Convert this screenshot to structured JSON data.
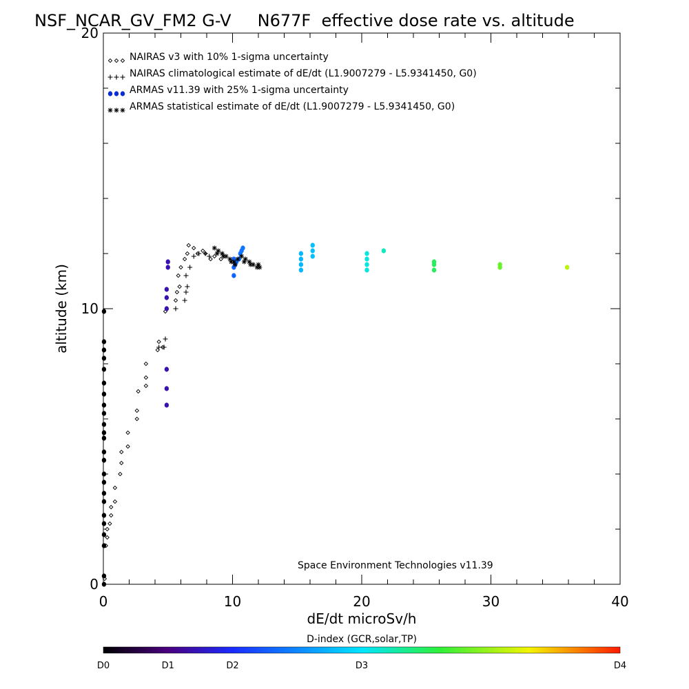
{
  "chart_data": {
    "type": "scatter",
    "title": "NSF_NCAR_GV_FM2 G-V     N677F  effective dose rate vs. altitude",
    "xlabel": "dE/dt microSv/h",
    "ylabel": "altitude (km)",
    "xlim": [
      0,
      40
    ],
    "ylim": [
      0,
      20
    ],
    "x_major_ticks": [
      0,
      10,
      20,
      30,
      40
    ],
    "y_major_ticks": [
      0,
      10,
      20
    ],
    "legend_position": "top-left",
    "credit": "Space Environment Technologies v11.39",
    "series": [
      {
        "name": "NAIRAS v3 with 10% 1-sigma uncertainty",
        "marker": "diamond",
        "color": "#000000",
        "points": [
          [
            0.1,
            0.2
          ],
          [
            0.2,
            1.4
          ],
          [
            0.3,
            1.7
          ],
          [
            0.3,
            2.0
          ],
          [
            0.5,
            2.2
          ],
          [
            0.6,
            2.5
          ],
          [
            0.6,
            2.8
          ],
          [
            0.9,
            3.0
          ],
          [
            0.9,
            3.5
          ],
          [
            1.3,
            4.0
          ],
          [
            1.4,
            4.4
          ],
          [
            1.4,
            4.8
          ],
          [
            1.9,
            5.0
          ],
          [
            1.9,
            5.5
          ],
          [
            2.6,
            6.0
          ],
          [
            2.6,
            6.3
          ],
          [
            2.7,
            7.0
          ],
          [
            3.3,
            7.2
          ],
          [
            3.3,
            7.5
          ],
          [
            3.3,
            8.0
          ],
          [
            4.2,
            8.5
          ],
          [
            4.3,
            8.8
          ],
          [
            4.6,
            8.6
          ],
          [
            4.8,
            9.9
          ],
          [
            5.6,
            10.3
          ],
          [
            5.7,
            10.6
          ],
          [
            5.9,
            10.8
          ],
          [
            5.8,
            11.2
          ],
          [
            6.0,
            11.5
          ],
          [
            6.3,
            11.8
          ],
          [
            6.5,
            12.0
          ],
          [
            6.6,
            12.3
          ],
          [
            7.0,
            12.2
          ],
          [
            7.3,
            12.0
          ],
          [
            7.7,
            12.1
          ],
          [
            7.9,
            12.0
          ],
          [
            8.3,
            11.8
          ],
          [
            8.6,
            11.9
          ],
          [
            9.1,
            11.8
          ]
        ]
      },
      {
        "name": "NAIRAS climatological estimate of dE/dt (L1.9007279 - L5.9341450, G0)",
        "marker": "plus",
        "color": "#000000",
        "points": [
          [
            4.3,
            8.6
          ],
          [
            4.7,
            8.6
          ],
          [
            4.8,
            8.9
          ],
          [
            5.6,
            10.0
          ],
          [
            6.3,
            10.3
          ],
          [
            6.4,
            10.6
          ],
          [
            6.5,
            10.8
          ],
          [
            6.4,
            11.2
          ],
          [
            6.7,
            11.5
          ],
          [
            7.0,
            11.9
          ],
          [
            7.4,
            12.0
          ],
          [
            7.9,
            12.0
          ],
          [
            8.2,
            11.9
          ]
        ]
      },
      {
        "name": "ARMAS v11.39 with 25% 1-sigma uncertainty",
        "marker": "circle",
        "color": "#0a2bd6",
        "points": [
          [
            0.05,
            0.0
          ],
          [
            0.05,
            0.3
          ],
          [
            0.05,
            1.4
          ],
          [
            0.05,
            1.8
          ],
          [
            0.05,
            2.2
          ],
          [
            0.05,
            2.5
          ],
          [
            0.05,
            3.0
          ],
          [
            0.05,
            3.3
          ],
          [
            0.05,
            3.7
          ],
          [
            0.05,
            4.0
          ],
          [
            0.05,
            4.5
          ],
          [
            0.05,
            4.8
          ],
          [
            0.05,
            5.3
          ],
          [
            0.05,
            5.5
          ],
          [
            0.05,
            5.8
          ],
          [
            0.05,
            6.2
          ],
          [
            0.05,
            6.5
          ],
          [
            0.05,
            6.9
          ],
          [
            0.05,
            7.3
          ],
          [
            0.05,
            7.8
          ],
          [
            0.05,
            8.2
          ],
          [
            0.05,
            8.5
          ],
          [
            0.05,
            8.8
          ],
          [
            0.05,
            9.9
          ],
          [
            4.9,
            6.5
          ],
          [
            4.9,
            7.1
          ],
          [
            4.9,
            7.8
          ],
          [
            4.9,
            10.0
          ],
          [
            4.9,
            10.4
          ],
          [
            4.9,
            10.7
          ],
          [
            5.0,
            11.5
          ],
          [
            5.0,
            11.7
          ],
          [
            10.1,
            11.2
          ],
          [
            10.1,
            11.5
          ],
          [
            10.1,
            11.8
          ],
          [
            10.2,
            11.6
          ],
          [
            10.3,
            11.7
          ],
          [
            10.5,
            11.8
          ],
          [
            10.6,
            12.0
          ],
          [
            10.7,
            12.1
          ],
          [
            10.8,
            12.2
          ],
          [
            15.3,
            11.4
          ],
          [
            15.3,
            11.6
          ],
          [
            15.3,
            11.8
          ],
          [
            15.3,
            12.0
          ],
          [
            16.2,
            11.9
          ],
          [
            16.2,
            12.1
          ],
          [
            16.2,
            12.3
          ],
          [
            20.4,
            11.4
          ],
          [
            20.4,
            11.6
          ],
          [
            20.4,
            11.8
          ],
          [
            20.4,
            12.0
          ],
          [
            21.7,
            12.1
          ],
          [
            25.6,
            11.4
          ],
          [
            25.6,
            11.6
          ],
          [
            25.6,
            11.7
          ],
          [
            30.7,
            11.5
          ],
          [
            30.7,
            11.6
          ],
          [
            35.9,
            11.5
          ]
        ],
        "d_index": [
          0,
          0,
          0,
          0,
          0,
          0,
          0,
          0,
          0,
          0,
          0,
          0,
          0,
          0,
          0,
          0,
          0,
          0,
          0,
          0,
          0,
          0,
          0,
          0,
          0.7,
          0.7,
          0.7,
          0.7,
          0.7,
          0.7,
          0.7,
          0.7,
          1.3,
          1.3,
          1.3,
          1.3,
          1.35,
          1.4,
          1.4,
          1.4,
          1.4,
          1.75,
          1.75,
          1.75,
          1.75,
          1.8,
          1.8,
          1.8,
          2.1,
          2.1,
          2.1,
          2.1,
          2.2,
          2.5,
          2.5,
          2.5,
          2.8,
          2.8,
          3.1
        ]
      },
      {
        "name": "ARMAS statistical estimate of dE/dt (L1.9007279 - L5.9341450, G0)",
        "marker": "asterisk",
        "color": "#000000",
        "points": [
          [
            8.6,
            12.2
          ],
          [
            8.9,
            12.1
          ],
          [
            9.2,
            12.0
          ],
          [
            9.5,
            11.9
          ],
          [
            9.8,
            11.8
          ],
          [
            10.1,
            11.7
          ],
          [
            10.4,
            11.8
          ],
          [
            10.7,
            11.9
          ],
          [
            11.0,
            11.8
          ],
          [
            11.3,
            11.7
          ],
          [
            11.6,
            11.6
          ],
          [
            11.9,
            11.5
          ],
          [
            12.1,
            11.5
          ],
          [
            8.8,
            12.0
          ],
          [
            9.3,
            11.9
          ],
          [
            9.9,
            11.7
          ],
          [
            10.2,
            11.6
          ],
          [
            10.9,
            11.7
          ],
          [
            11.4,
            11.6
          ],
          [
            12.0,
            11.6
          ]
        ]
      }
    ],
    "colorbar": {
      "label": "D-index (GCR,solar,TP)",
      "range": [
        0,
        4
      ],
      "ticks": [
        {
          "value": 0,
          "label": "D0"
        },
        {
          "value": 0.5,
          "label": "D1"
        },
        {
          "value": 1,
          "label": "D2"
        },
        {
          "value": 2,
          "label": "D3"
        },
        {
          "value": 4,
          "label": "D4"
        }
      ],
      "stops": [
        {
          "value": 0,
          "color": "#000000"
        },
        {
          "value": 0.5,
          "color": "#4a007f"
        },
        {
          "value": 1,
          "color": "#1a2bff"
        },
        {
          "value": 2,
          "color": "#00e5ff"
        },
        {
          "value": 2.6,
          "color": "#2ef03a"
        },
        {
          "value": 3.3,
          "color": "#f4f400"
        },
        {
          "value": 4,
          "color": "#ff1a00"
        }
      ]
    }
  }
}
